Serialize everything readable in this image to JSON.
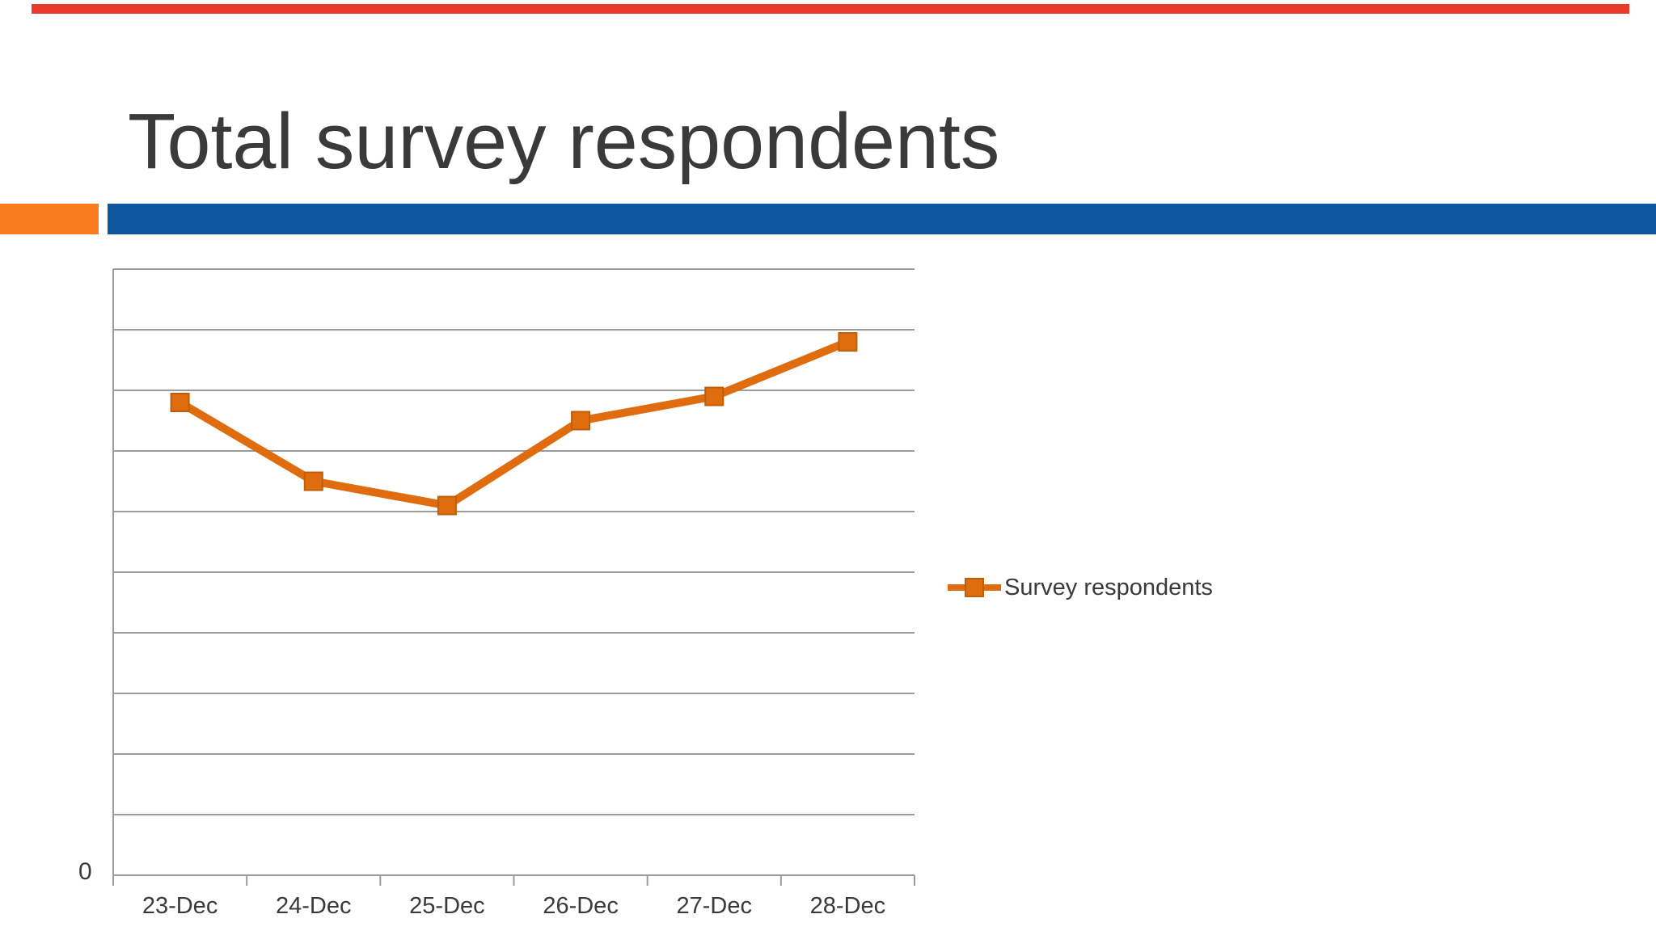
{
  "slide": {
    "title": "Total survey respondents",
    "colors": {
      "top_stripe": "#E93A2B",
      "accent_orange": "#F97C1E",
      "accent_blue": "#0F579F",
      "text": "#3A3A3A",
      "gridline": "#9B9B9B"
    }
  },
  "legend": {
    "label": "Survey respondents"
  },
  "y_axis": {
    "origin_label": "0"
  },
  "chart_data": {
    "type": "line",
    "title": "Total survey respondents",
    "categories": [
      "23-Dec",
      "24-Dec",
      "25-Dec",
      "26-Dec",
      "27-Dec",
      "28-Dec"
    ],
    "series": [
      {
        "name": "Survey respondents",
        "values": [
          78,
          65,
          61,
          75,
          79,
          88
        ],
        "color": "#DF6D0F",
        "marker_border_color": "#BF5E09",
        "marker": "square"
      }
    ],
    "xlabel": "",
    "ylabel": "",
    "ylim": [
      0,
      100
    ],
    "gridline_step": 10,
    "grid": true,
    "legend_position": "right",
    "y_tick_labels_hidden_except_origin": true
  }
}
